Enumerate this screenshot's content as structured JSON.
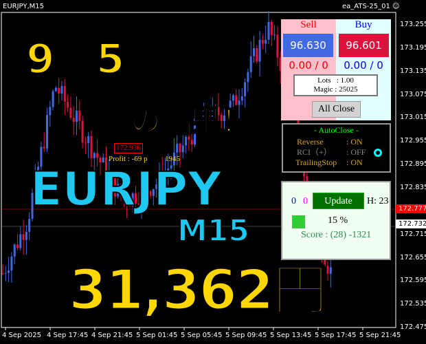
{
  "window": {
    "symbol": "EURJPY,M15",
    "ea_name": "ea_ATS-25_01 ☺"
  },
  "price_axis": [
    "173.255",
    "173.195",
    "173.135",
    "173.075",
    "173.015",
    "172.955",
    "172.895",
    "172.835",
    "172.715",
    "172.655",
    "172.595",
    "172.535",
    "172.475"
  ],
  "current_prices": {
    "bid": "172.777",
    "ask": "172.732",
    "bid_color": "#ff0000"
  },
  "time_axis": [
    "4 Sep 2025",
    "4 Sep 17:45",
    "4 Sep 21:45",
    "5 Sep 01:45",
    "5 Sep 05:45",
    "5 Sep 09:45",
    "5 Sep 13:45",
    "5 Sep 17:45",
    "5 Sep 21:45"
  ],
  "trade_panel": {
    "sell_label": "Sell",
    "buy_label": "Buy",
    "sell_price": "96.630",
    "buy_price": "96.601",
    "sell_pl": "0.00 / 0",
    "buy_pl": "0.00 / 0",
    "lots": "Lots   : 1.00",
    "magic": "Magic : 25025",
    "all_close": "All Close"
  },
  "autoclose": {
    "title": "- AutoClose -",
    "reverse": "Reverse",
    "reverse_val": ": ON",
    "rci": "RCI（+）",
    "rci_val": ": OFF",
    "trailing": "TrailingStop",
    "trailing_val": ": ON"
  },
  "status_panel": {
    "count_blue": "0",
    "count_magenta": "0",
    "update": "Update",
    "hours": "H: 23",
    "percent": "15 %",
    "score": "Score : (28) -1321"
  },
  "chart_notes": {
    "marker_price": "172.936",
    "profit": "Profit : -69 p",
    "partial": "1945"
  },
  "overlay": {
    "date": "9月5日",
    "result": "の結果！",
    "pair": "EURJPY",
    "timeframe": "M15",
    "amount": "＋31,362円"
  },
  "colors": {
    "bull": "#4169e1",
    "bear": "#dc143c",
    "overlay_yellow": "#ffd700",
    "overlay_cyan": "#1ec8f0"
  }
}
